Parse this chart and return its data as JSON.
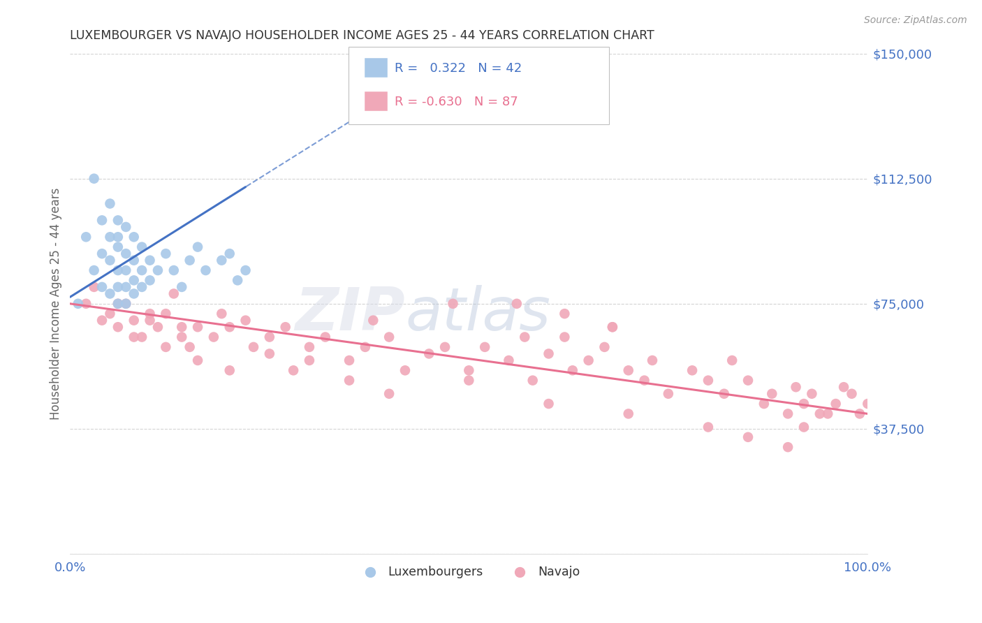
{
  "title": "LUXEMBOURGER VS NAVAJO HOUSEHOLDER INCOME AGES 25 - 44 YEARS CORRELATION CHART",
  "source": "Source: ZipAtlas.com",
  "ylabel": "Householder Income Ages 25 - 44 years",
  "xlim": [
    0,
    1.0
  ],
  "ylim": [
    0,
    150000
  ],
  "yticks": [
    0,
    37500,
    75000,
    112500,
    150000
  ],
  "ytick_labels": [
    "",
    "$37,500",
    "$75,000",
    "$112,500",
    "$150,000"
  ],
  "xtick_labels": [
    "0.0%",
    "100.0%"
  ],
  "background_color": "#ffffff",
  "grid_color": "#c8c8c8",
  "title_color": "#333333",
  "axis_label_color": "#666666",
  "tick_label_color": "#4472c4",
  "legend_R1": "0.322",
  "legend_N1": "42",
  "legend_R2": "-0.630",
  "legend_N2": "87",
  "blue_color": "#a8c8e8",
  "pink_color": "#f0a8b8",
  "trend_blue": "#4472c4",
  "trend_pink": "#e87090",
  "lux_x": [
    0.01,
    0.02,
    0.03,
    0.03,
    0.04,
    0.04,
    0.04,
    0.05,
    0.05,
    0.05,
    0.05,
    0.06,
    0.06,
    0.06,
    0.06,
    0.06,
    0.06,
    0.07,
    0.07,
    0.07,
    0.07,
    0.07,
    0.08,
    0.08,
    0.08,
    0.08,
    0.09,
    0.09,
    0.09,
    0.1,
    0.1,
    0.11,
    0.12,
    0.13,
    0.14,
    0.15,
    0.16,
    0.17,
    0.19,
    0.2,
    0.21,
    0.22
  ],
  "lux_y": [
    75000,
    95000,
    112500,
    85000,
    100000,
    90000,
    80000,
    95000,
    88000,
    105000,
    78000,
    100000,
    92000,
    85000,
    80000,
    75000,
    95000,
    98000,
    90000,
    85000,
    80000,
    75000,
    95000,
    88000,
    82000,
    78000,
    92000,
    85000,
    80000,
    88000,
    82000,
    85000,
    90000,
    85000,
    80000,
    88000,
    92000,
    85000,
    88000,
    90000,
    82000,
    85000
  ],
  "navajo_x": [
    0.02,
    0.03,
    0.05,
    0.06,
    0.07,
    0.08,
    0.09,
    0.1,
    0.11,
    0.12,
    0.13,
    0.14,
    0.15,
    0.16,
    0.18,
    0.19,
    0.2,
    0.22,
    0.23,
    0.25,
    0.27,
    0.28,
    0.3,
    0.32,
    0.35,
    0.37,
    0.38,
    0.4,
    0.42,
    0.45,
    0.47,
    0.48,
    0.5,
    0.52,
    0.55,
    0.57,
    0.58,
    0.6,
    0.62,
    0.63,
    0.65,
    0.67,
    0.68,
    0.7,
    0.72,
    0.73,
    0.75,
    0.78,
    0.8,
    0.82,
    0.83,
    0.85,
    0.87,
    0.88,
    0.9,
    0.91,
    0.92,
    0.93,
    0.95,
    0.96,
    0.97,
    0.98,
    0.99,
    1.0,
    0.04,
    0.06,
    0.08,
    0.1,
    0.12,
    0.14,
    0.16,
    0.2,
    0.25,
    0.3,
    0.35,
    0.4,
    0.5,
    0.6,
    0.7,
    0.8,
    0.85,
    0.9,
    0.92,
    0.94,
    0.56,
    0.62,
    0.68
  ],
  "navajo_y": [
    75000,
    80000,
    72000,
    68000,
    75000,
    70000,
    65000,
    72000,
    68000,
    72000,
    78000,
    65000,
    62000,
    68000,
    65000,
    72000,
    68000,
    70000,
    62000,
    65000,
    68000,
    55000,
    62000,
    65000,
    58000,
    62000,
    70000,
    65000,
    55000,
    60000,
    62000,
    75000,
    55000,
    62000,
    58000,
    65000,
    52000,
    60000,
    65000,
    55000,
    58000,
    62000,
    68000,
    55000,
    52000,
    58000,
    48000,
    55000,
    52000,
    48000,
    58000,
    52000,
    45000,
    48000,
    42000,
    50000,
    45000,
    48000,
    42000,
    45000,
    50000,
    48000,
    42000,
    45000,
    70000,
    75000,
    65000,
    70000,
    62000,
    68000,
    58000,
    55000,
    60000,
    58000,
    52000,
    48000,
    52000,
    45000,
    42000,
    38000,
    35000,
    32000,
    38000,
    42000,
    75000,
    72000,
    68000
  ]
}
